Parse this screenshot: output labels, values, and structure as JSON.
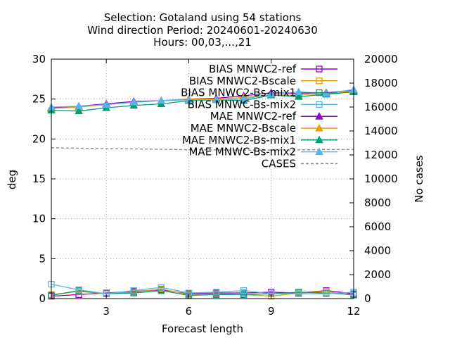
{
  "chart_data": {
    "type": "line",
    "title_lines": [
      "Selection: Gotaland using    54 stations",
      "Wind direction   Period: 20240601-20240630",
      "Hours: 00,03,...,21"
    ],
    "xlabel": "Forecast length",
    "ylabel": "deg",
    "y2label": "No cases",
    "xlim": [
      1,
      12
    ],
    "ylim": [
      0,
      30
    ],
    "y2lim": [
      0,
      20000
    ],
    "xticks": [
      3,
      6,
      9,
      12
    ],
    "yticks": [
      0,
      5,
      10,
      15,
      20,
      25,
      30
    ],
    "y2ticks": [
      0,
      2000,
      4000,
      6000,
      8000,
      10000,
      12000,
      14000,
      16000,
      18000,
      20000
    ],
    "grid": true,
    "legend_position": "top-right",
    "x": [
      1,
      2,
      3,
      4,
      5,
      6,
      7,
      8,
      9,
      10,
      11,
      12
    ],
    "series": [
      {
        "name": "BIAS MNWC2-ref",
        "color": "#9400d3",
        "marker": "square-open",
        "axis": "y",
        "values": [
          0.3,
          0.5,
          0.7,
          0.9,
          1.1,
          0.6,
          0.7,
          0.7,
          0.8,
          0.7,
          1.0,
          0.6
        ]
      },
      {
        "name": "BIAS MNWC2-Bscale",
        "color": "#e69f00",
        "marker": "square-open",
        "axis": "y",
        "values": [
          0.5,
          0.9,
          0.6,
          0.8,
          1.2,
          0.5,
          0.6,
          0.5,
          0.3,
          0.7,
          0.9,
          0.4
        ]
      },
      {
        "name": "BIAS MNWC2-Bs-mix1",
        "color": "#009e73",
        "marker": "square-open",
        "axis": "y",
        "values": [
          0.4,
          1.0,
          0.6,
          0.7,
          1.0,
          0.4,
          0.5,
          0.5,
          0.6,
          0.8,
          0.7,
          0.5
        ]
      },
      {
        "name": "BIAS MNWC-Bs-mix2",
        "color": "#56b4e9",
        "marker": "square-open",
        "axis": "y",
        "values": [
          1.8,
          1.1,
          0.6,
          1.0,
          1.4,
          0.7,
          0.8,
          1.0,
          0.6,
          0.6,
          0.6,
          0.8
        ]
      },
      {
        "name": "MAE MNWC2-ref",
        "color": "#9400d3",
        "marker": "triangle-filled",
        "axis": "y",
        "values": [
          23.9,
          24.1,
          24.4,
          24.7,
          24.8,
          25.0,
          25.1,
          25.4,
          25.8,
          25.7,
          25.8,
          26.1
        ]
      },
      {
        "name": "MAE MNWC2-Bscale",
        "color": "#e69f00",
        "marker": "triangle-filled",
        "axis": "y",
        "values": [
          23.8,
          24.0,
          24.3,
          24.6,
          24.8,
          25.0,
          25.0,
          25.2,
          25.5,
          25.5,
          25.7,
          26.0
        ]
      },
      {
        "name": "MAE MNWC2-Bs-mix1",
        "color": "#009e73",
        "marker": "triangle-filled",
        "axis": "y",
        "values": [
          23.6,
          23.5,
          23.9,
          24.2,
          24.4,
          24.8,
          24.9,
          24.8,
          25.5,
          25.3,
          25.6,
          25.9
        ]
      },
      {
        "name": "MAE MNWC-Bs-mix2",
        "color": "#56b4e9",
        "marker": "triangle-filled",
        "axis": "y",
        "values": [
          24.0,
          24.1,
          24.3,
          24.6,
          24.8,
          24.9,
          24.9,
          25.0,
          25.6,
          25.9,
          25.7,
          26.2
        ]
      },
      {
        "name": "CASES",
        "color": "#808080",
        "marker": "none",
        "dash": "dashed",
        "axis": "y2",
        "values": [
          12600,
          12560,
          12530,
          12500,
          12470,
          12430,
          12420,
          12400,
          12400,
          12420,
          12450,
          12460
        ]
      }
    ]
  }
}
